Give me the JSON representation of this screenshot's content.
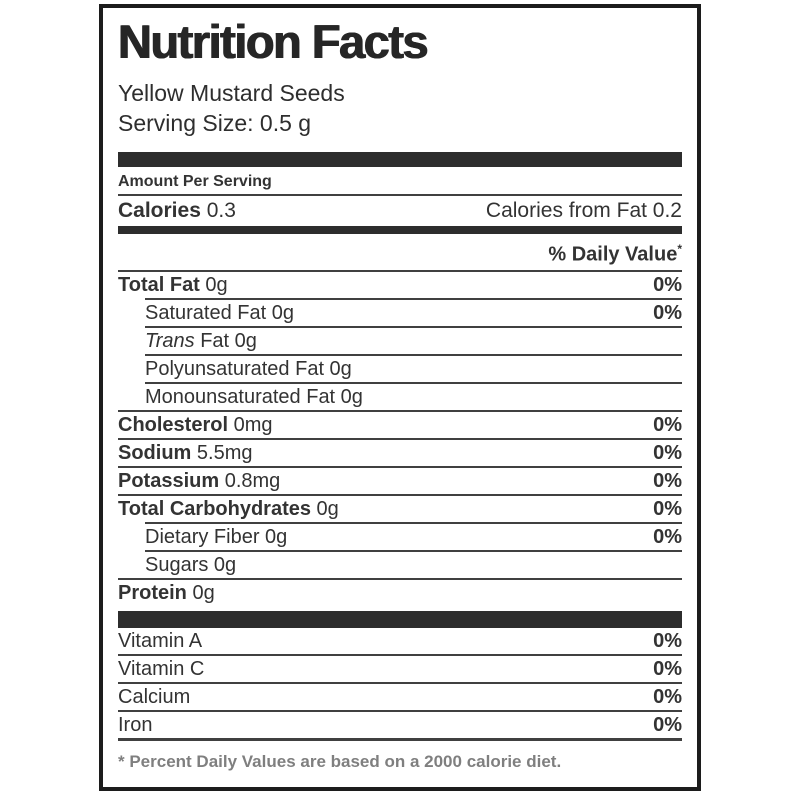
{
  "label": {
    "title": "Nutrition Facts",
    "product_name": "Yellow Mustard Seeds",
    "serving_size": "Serving Size: 0.5 g",
    "amount_per_serving": "Amount Per Serving",
    "calories": {
      "label": "Calories",
      "value": " 0.3",
      "from_fat": "Calories from Fat 0.2"
    },
    "daily_value_heading": "% Daily Value",
    "daily_value_mark": "*",
    "rows": [
      {
        "b": "Total Fat",
        "r": " 0g",
        "dv": "0%"
      },
      {
        "r": "Saturated Fat 0g",
        "dv": "0%"
      },
      {
        "i": "Trans",
        "r": " Fat 0g",
        "dv": ""
      },
      {
        "r": "Polyunsaturated Fat 0g",
        "dv": ""
      },
      {
        "r": "Monounsaturated Fat 0g",
        "dv": ""
      },
      {
        "b": "Cholesterol",
        "r": " 0mg",
        "dv": "0%"
      },
      {
        "b": "Sodium",
        "r": " 5.5mg",
        "dv": "0%"
      },
      {
        "b": "Potassium",
        "r": " 0.8mg",
        "dv": "0%"
      },
      {
        "b": "Total Carbohydrates",
        "r": " 0g",
        "dv": "0%"
      },
      {
        "r": "Dietary Fiber 0g",
        "dv": "0%"
      },
      {
        "r": "Sugars 0g",
        "dv": ""
      },
      {
        "b": "Protein",
        "r": " 0g",
        "dv": ""
      }
    ],
    "vitamins": [
      {
        "name": "Vitamin A",
        "dv": "0%"
      },
      {
        "name": "Vitamin C",
        "dv": "0%"
      },
      {
        "name": "Calcium",
        "dv": "0%"
      },
      {
        "name": "Iron",
        "dv": "0%"
      }
    ],
    "footnote": "* Percent Daily Values are based on a 2000 calorie diet.",
    "colors": {
      "border": "#1c1c1c",
      "bar": "#2d2d2d",
      "text": "#333333",
      "rule": "#404040",
      "footnote_text": "#7f7f7f"
    }
  }
}
